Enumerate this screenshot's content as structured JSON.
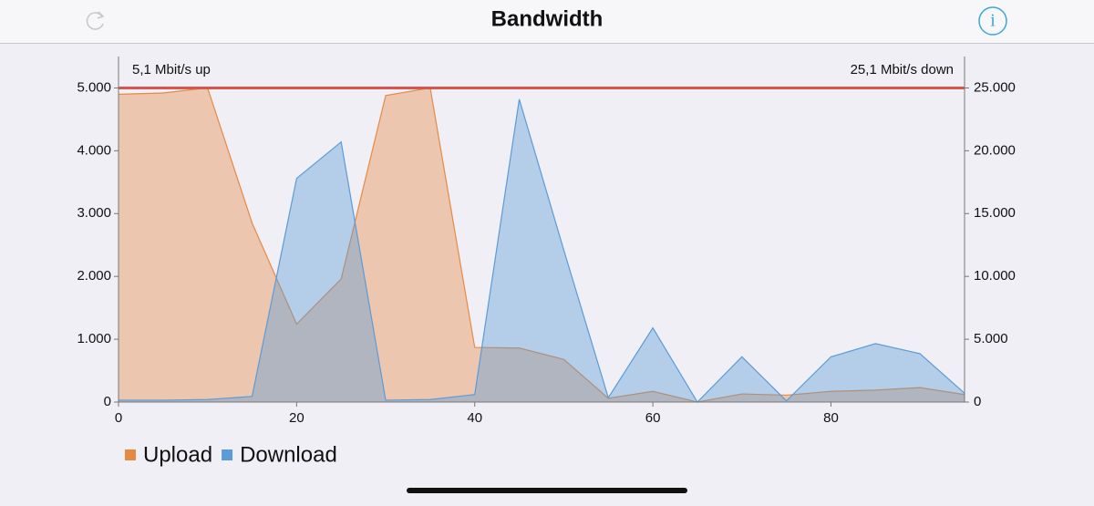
{
  "nav": {
    "title": "Bandwidth"
  },
  "chart_data": {
    "type": "area",
    "annotations": {
      "up": "5,1 Mbit/s up",
      "down": "25,1 Mbit/s down"
    },
    "x": [
      0,
      5,
      10,
      15,
      20,
      25,
      30,
      35,
      40,
      45,
      50,
      55,
      60,
      65,
      70,
      75,
      80,
      85,
      90,
      95
    ],
    "series": [
      {
        "name": "Upload",
        "color": "#e58a45",
        "values": [
          4900,
          4920,
          5000,
          2850,
          1240,
          1960,
          4880,
          5000,
          870,
          860,
          680,
          60,
          170,
          0,
          130,
          110,
          170,
          190,
          230,
          120
        ]
      },
      {
        "name": "Download",
        "color": "#5b9bd8",
        "axis": "y2",
        "values": [
          150,
          150,
          200,
          450,
          17800,
          20700,
          150,
          200,
          600,
          24100,
          12100,
          350,
          5900,
          0,
          3600,
          100,
          3600,
          4650,
          3850,
          700
        ]
      }
    ],
    "reference_line": {
      "value": 5000,
      "color": "#d9534f"
    },
    "xlim": [
      0,
      95
    ],
    "xticks": [
      0,
      20,
      40,
      60,
      80
    ],
    "ylim": [
      0,
      5500
    ],
    "yticks": [
      0,
      {
        "value": 1000,
        "label": "1.000"
      },
      {
        "value": 2000,
        "label": "2.000"
      },
      {
        "value": 3000,
        "label": "3.000"
      },
      {
        "value": 4000,
        "label": "4.000"
      },
      {
        "value": 5000,
        "label": "5.000"
      }
    ],
    "y2lim": [
      0,
      27500
    ],
    "y2ticks": [
      0,
      {
        "value": 5000,
        "label": "5.000"
      },
      {
        "value": 10000,
        "label": "10.000"
      },
      {
        "value": 15000,
        "label": "15.000"
      },
      {
        "value": 20000,
        "label": "20.000"
      },
      {
        "value": 25000,
        "label": "25.000"
      }
    ]
  }
}
